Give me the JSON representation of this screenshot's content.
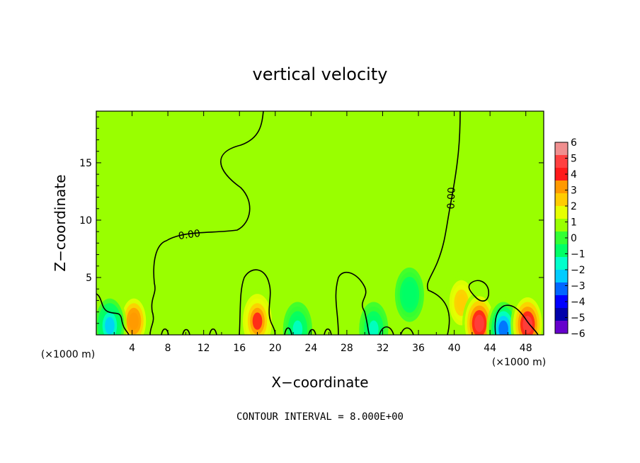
{
  "chart_data": {
    "type": "heatmap",
    "title": "vertical velocity",
    "xlabel": "X−coordinate",
    "ylabel": "Z−coordinate",
    "x_unit": "(×1000 m)",
    "x_unit_right": "(×1000 m)",
    "xlim": [
      0,
      50
    ],
    "ylim": [
      0,
      19.5
    ],
    "x_ticks": [
      4,
      8,
      12,
      16,
      20,
      24,
      28,
      32,
      36,
      40,
      44,
      48
    ],
    "y_ticks": [
      5,
      10,
      15
    ],
    "grid": false,
    "background_value": 0.5,
    "contour_level_label": "0.00",
    "contour_interval_text": "CONTOUR INTERVAL = 8.000E+00",
    "colorbar": {
      "min": -6,
      "max": 6,
      "tick_labels": [
        "6",
        "5",
        "4",
        "3",
        "2",
        "1",
        "0",
        "−1",
        "−2",
        "−3",
        "−4",
        "−5",
        "−6"
      ],
      "colors": [
        "#f08f8f",
        "#ff4040",
        "#ff1a1a",
        "#ff9900",
        "#ffcc00",
        "#e6ff00",
        "#99ff00",
        "#33ff33",
        "#00ff66",
        "#00ffcc",
        "#00ccff",
        "#0066ff",
        "#0000ff",
        "#0000aa",
        "#6600cc"
      ]
    },
    "features": [
      {
        "x": 4.2,
        "z": 1.2,
        "value": 3.5
      },
      {
        "x": 18.0,
        "z": 1.2,
        "value": 4.0
      },
      {
        "x": 40.8,
        "z": 2.8,
        "value": 2.5
      },
      {
        "x": 42.8,
        "z": 1.0,
        "value": 5.0
      },
      {
        "x": 45.5,
        "z": 0.5,
        "value": -3.5
      },
      {
        "x": 48.2,
        "z": 0.9,
        "value": 4.5
      },
      {
        "x": 1.5,
        "z": 0.8,
        "value": -2.0
      },
      {
        "x": 22.5,
        "z": 0.5,
        "value": -1.5
      },
      {
        "x": 31.0,
        "z": 0.5,
        "value": -1.5
      },
      {
        "x": 35.0,
        "z": 3.5,
        "value": -1.0
      }
    ]
  }
}
